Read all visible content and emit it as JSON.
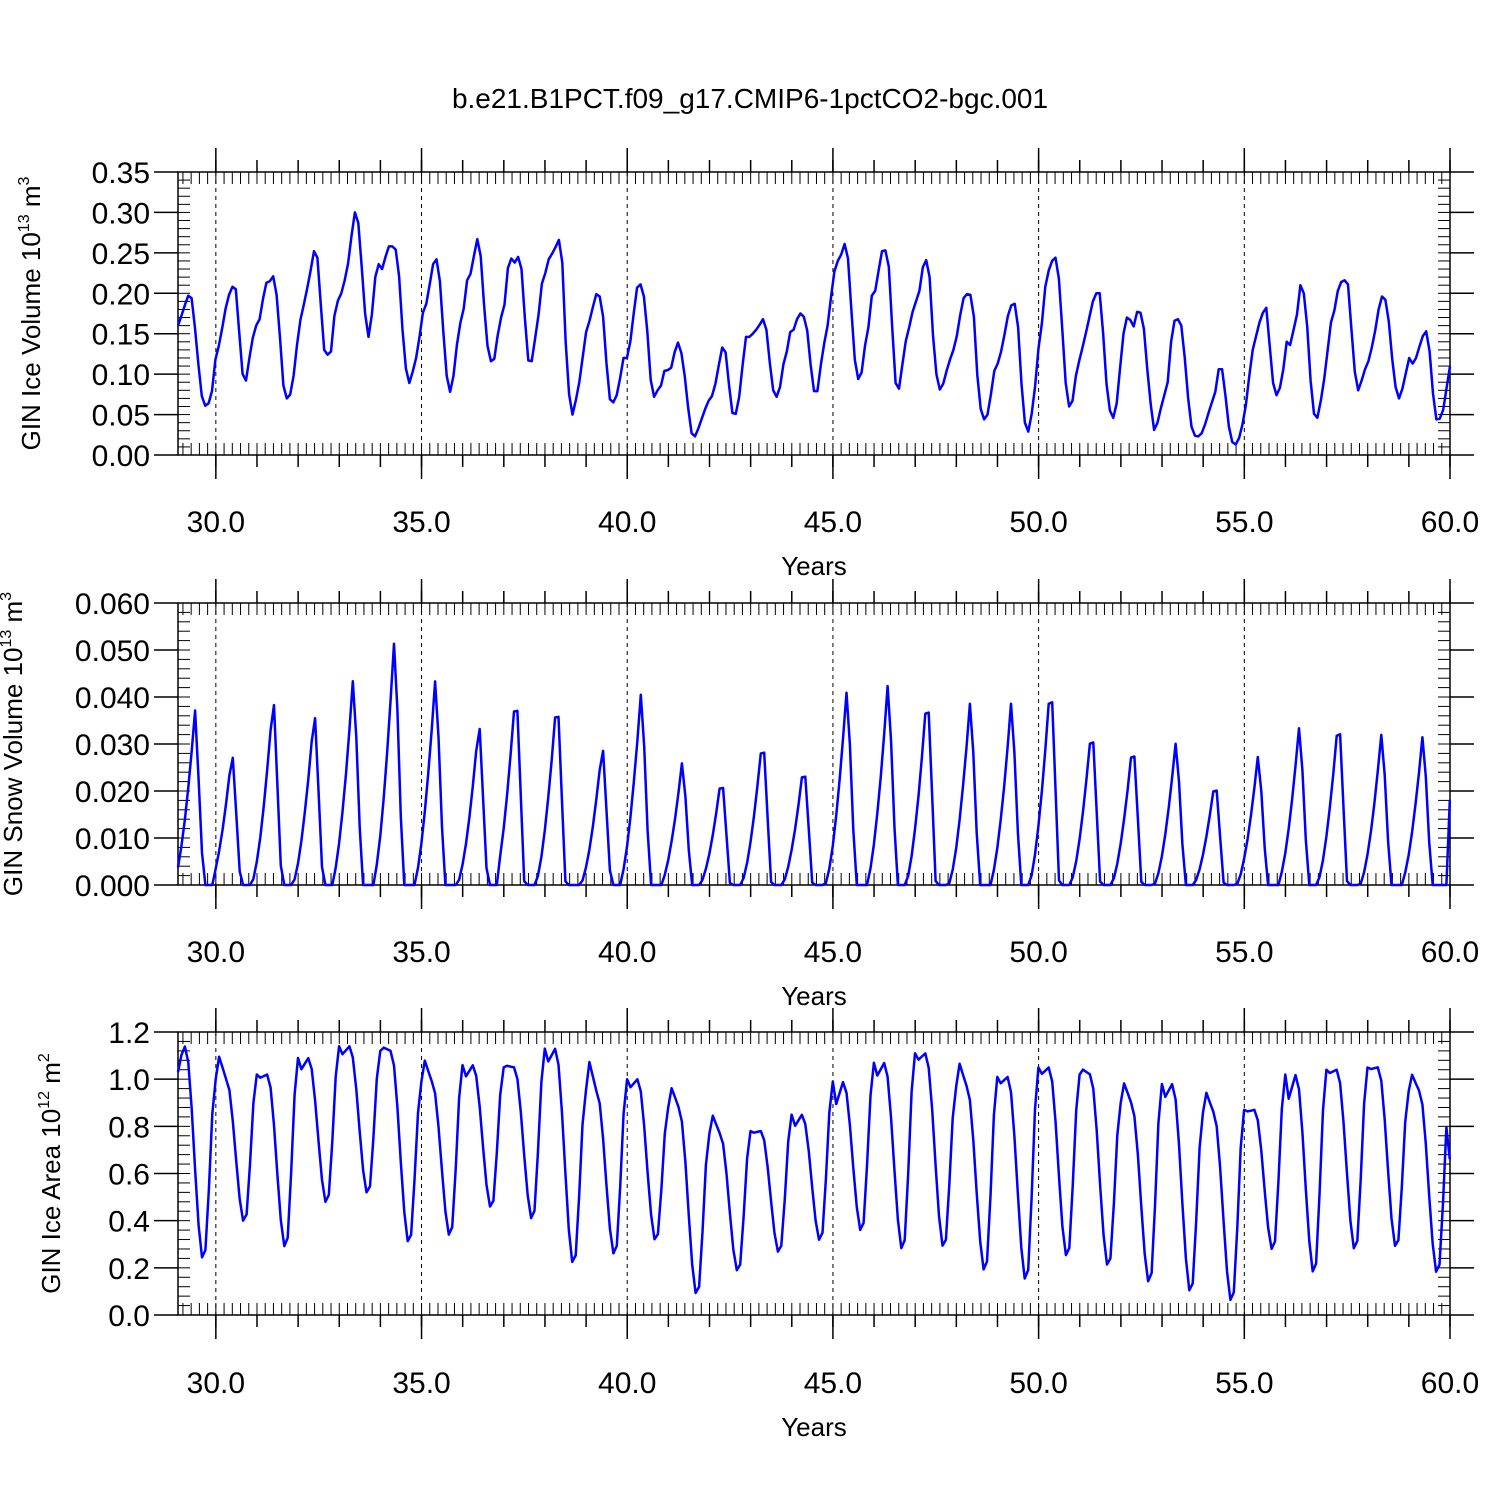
{
  "figure": {
    "title": "b.e21.B1PCT.f09_g17.CMIP6-1pctCO2-bgc.001"
  },
  "chart_data": [
    {
      "type": "line",
      "title": "b.e21.B1PCT.f09_g17.CMIP6-1pctCO2-bgc.001",
      "xlabel": "Years",
      "ylabel": {
        "base": "GIN Ice Volume 10",
        "sup": "13",
        "unit": " m",
        "unit_sup": "3"
      },
      "xlim": [
        29.08,
        60.0
      ],
      "ylim": [
        0.0,
        0.35
      ],
      "x_ticks": [
        30,
        35,
        40,
        45,
        50,
        55,
        60
      ],
      "x_tick_labels": [
        "30.0",
        "35.0",
        "40.0",
        "45.0",
        "50.0",
        "55.0",
        "60.0"
      ],
      "y_ticks": [
        0.0,
        0.05,
        0.1,
        0.15,
        0.2,
        0.25,
        0.3,
        0.35
      ],
      "y_tick_labels": [
        "0.00",
        "0.05",
        "0.10",
        "0.15",
        "0.20",
        "0.25",
        "0.30",
        "0.35"
      ],
      "grid": "dashed vertical at major x ticks",
      "line_color": "#0000ff",
      "x_start": 29.08,
      "x_step": 0.08333,
      "values": [
        0.16,
        0.172,
        0.185,
        0.197,
        0.194,
        0.157,
        0.112,
        0.073,
        0.061,
        0.064,
        0.079,
        0.118,
        0.135,
        0.157,
        0.181,
        0.198,
        0.208,
        0.205,
        0.152,
        0.1,
        0.092,
        0.12,
        0.145,
        0.16,
        0.168,
        0.193,
        0.213,
        0.215,
        0.221,
        0.198,
        0.145,
        0.086,
        0.07,
        0.075,
        0.098,
        0.136,
        0.167,
        0.186,
        0.206,
        0.228,
        0.252,
        0.244,
        0.186,
        0.13,
        0.124,
        0.128,
        0.172,
        0.191,
        0.2,
        0.216,
        0.237,
        0.271,
        0.3,
        0.287,
        0.233,
        0.175,
        0.146,
        0.174,
        0.22,
        0.236,
        0.23,
        0.245,
        0.258,
        0.258,
        0.254,
        0.221,
        0.155,
        0.107,
        0.089,
        0.103,
        0.12,
        0.146,
        0.176,
        0.187,
        0.211,
        0.236,
        0.242,
        0.215,
        0.153,
        0.098,
        0.078,
        0.098,
        0.136,
        0.163,
        0.181,
        0.216,
        0.224,
        0.246,
        0.267,
        0.246,
        0.185,
        0.135,
        0.116,
        0.119,
        0.148,
        0.17,
        0.186,
        0.231,
        0.243,
        0.238,
        0.245,
        0.23,
        0.169,
        0.117,
        0.116,
        0.144,
        0.173,
        0.212,
        0.225,
        0.242,
        0.249,
        0.257,
        0.266,
        0.238,
        0.139,
        0.075,
        0.05,
        0.068,
        0.09,
        0.121,
        0.152,
        0.166,
        0.183,
        0.199,
        0.196,
        0.171,
        0.113,
        0.069,
        0.065,
        0.074,
        0.095,
        0.12,
        0.12,
        0.14,
        0.175,
        0.207,
        0.211,
        0.196,
        0.153,
        0.093,
        0.072,
        0.08,
        0.086,
        0.104,
        0.105,
        0.108,
        0.127,
        0.139,
        0.126,
        0.097,
        0.058,
        0.027,
        0.023,
        0.033,
        0.045,
        0.057,
        0.067,
        0.073,
        0.088,
        0.111,
        0.133,
        0.127,
        0.087,
        0.052,
        0.051,
        0.072,
        0.111,
        0.146,
        0.146,
        0.15,
        0.155,
        0.161,
        0.168,
        0.155,
        0.114,
        0.08,
        0.072,
        0.084,
        0.112,
        0.128,
        0.152,
        0.155,
        0.168,
        0.175,
        0.171,
        0.154,
        0.112,
        0.079,
        0.079,
        0.111,
        0.138,
        0.16,
        0.195,
        0.227,
        0.24,
        0.248,
        0.261,
        0.243,
        0.179,
        0.118,
        0.094,
        0.102,
        0.135,
        0.158,
        0.197,
        0.203,
        0.228,
        0.252,
        0.253,
        0.233,
        0.158,
        0.089,
        0.082,
        0.112,
        0.141,
        0.158,
        0.177,
        0.19,
        0.203,
        0.232,
        0.241,
        0.22,
        0.148,
        0.1,
        0.081,
        0.088,
        0.104,
        0.118,
        0.13,
        0.147,
        0.173,
        0.194,
        0.199,
        0.198,
        0.171,
        0.099,
        0.057,
        0.044,
        0.05,
        0.075,
        0.104,
        0.113,
        0.128,
        0.149,
        0.172,
        0.185,
        0.187,
        0.158,
        0.088,
        0.04,
        0.029,
        0.051,
        0.085,
        0.132,
        0.163,
        0.208,
        0.228,
        0.24,
        0.244,
        0.218,
        0.155,
        0.089,
        0.06,
        0.067,
        0.098,
        0.117,
        0.134,
        0.152,
        0.171,
        0.19,
        0.2,
        0.2,
        0.151,
        0.088,
        0.055,
        0.046,
        0.064,
        0.108,
        0.15,
        0.17,
        0.167,
        0.159,
        0.177,
        0.176,
        0.156,
        0.106,
        0.063,
        0.031,
        0.04,
        0.058,
        0.074,
        0.09,
        0.14,
        0.166,
        0.168,
        0.16,
        0.121,
        0.071,
        0.035,
        0.024,
        0.023,
        0.027,
        0.038,
        0.052,
        0.065,
        0.078,
        0.106,
        0.106,
        0.073,
        0.035,
        0.016,
        0.013,
        0.021,
        0.038,
        0.062,
        0.098,
        0.13,
        0.147,
        0.164,
        0.176,
        0.182,
        0.135,
        0.089,
        0.074,
        0.083,
        0.106,
        0.14,
        0.136,
        0.155,
        0.174,
        0.21,
        0.2,
        0.159,
        0.092,
        0.051,
        0.046,
        0.067,
        0.094,
        0.129,
        0.164,
        0.179,
        0.203,
        0.214,
        0.216,
        0.211,
        0.156,
        0.103,
        0.08,
        0.092,
        0.106,
        0.116,
        0.133,
        0.154,
        0.18,
        0.196,
        0.192,
        0.165,
        0.119,
        0.084,
        0.07,
        0.082,
        0.101,
        0.12,
        0.113,
        0.12,
        0.134,
        0.147,
        0.153,
        0.128,
        0.076,
        0.044,
        0.045,
        0.056,
        0.083,
        0.11
      ]
    },
    {
      "type": "line",
      "xlabel": "Years",
      "ylabel": {
        "base": "GIN Snow Volume 10",
        "sup": "13",
        "unit": " m",
        "unit_sup": "3"
      },
      "xlim": [
        29.08,
        60.0
      ],
      "ylim": [
        0.0,
        0.06
      ],
      "x_ticks": [
        30,
        35,
        40,
        45,
        50,
        55,
        60
      ],
      "x_tick_labels": [
        "30.0",
        "35.0",
        "40.0",
        "45.0",
        "50.0",
        "55.0",
        "60.0"
      ],
      "y_ticks": [
        0.0,
        0.01,
        0.02,
        0.03,
        0.04,
        0.05,
        0.06
      ],
      "y_tick_labels": [
        "0.000",
        "0.010",
        "0.020",
        "0.030",
        "0.040",
        "0.050",
        "0.060"
      ],
      "grid": "dashed vertical at major x ticks",
      "line_color": "#0000ff",
      "x_start": 29.08,
      "x_step": 0.08333,
      "peaks": [
        [
          29.5,
          0.0375
        ],
        [
          30.4,
          0.029
        ],
        [
          31.4,
          0.041
        ],
        [
          32.4,
          0.038
        ],
        [
          33.35,
          0.046
        ],
        [
          34.35,
          0.0545
        ],
        [
          35.35,
          0.046
        ],
        [
          36.4,
          0.0355
        ],
        [
          37.3,
          0.0435
        ],
        [
          38.3,
          0.042
        ],
        [
          39.4,
          0.0305
        ],
        [
          40.35,
          0.043
        ],
        [
          41.35,
          0.0275
        ],
        [
          42.3,
          0.0242
        ],
        [
          43.3,
          0.033
        ],
        [
          44.3,
          0.027
        ],
        [
          45.35,
          0.0435
        ],
        [
          46.35,
          0.045
        ],
        [
          47.3,
          0.043
        ],
        [
          48.35,
          0.041
        ],
        [
          49.35,
          0.041
        ],
        [
          50.3,
          0.0455
        ],
        [
          51.3,
          0.0355
        ],
        [
          52.3,
          0.032
        ],
        [
          53.35,
          0.032
        ],
        [
          54.3,
          0.0235
        ],
        [
          55.35,
          0.029
        ],
        [
          56.35,
          0.0355
        ],
        [
          57.3,
          0.0375
        ],
        [
          58.35,
          0.034
        ],
        [
          59.35,
          0.0335
        ]
      ],
      "end_value": 0.018
    },
    {
      "type": "line",
      "xlabel": "Years",
      "ylabel": {
        "base": "GIN Ice Area 10",
        "sup": "12",
        "unit": " m",
        "unit_sup": "2"
      },
      "xlim": [
        29.08,
        60.0
      ],
      "ylim": [
        0.0,
        1.2
      ],
      "x_ticks": [
        30,
        35,
        40,
        45,
        50,
        55,
        60
      ],
      "x_tick_labels": [
        "30.0",
        "35.0",
        "40.0",
        "45.0",
        "50.0",
        "55.0",
        "60.0"
      ],
      "y_ticks": [
        0.0,
        0.2,
        0.4,
        0.6,
        0.8,
        1.0,
        1.2
      ],
      "y_tick_labels": [
        "0.0",
        "0.2",
        "0.4",
        "0.6",
        "0.8",
        "1.0",
        "1.2"
      ],
      "grid": "dashed vertical at major x ticks",
      "line_color": "#0000ff",
      "x_start": 29.08,
      "x_step": 0.08333,
      "troughs": [
        0.23,
        0.39,
        0.28,
        0.47,
        0.51,
        0.3,
        0.33,
        0.45,
        0.4,
        0.21,
        0.25,
        0.31,
        0.08,
        0.18,
        0.26,
        0.31,
        0.35,
        0.27,
        0.28,
        0.18,
        0.14,
        0.24,
        0.2,
        0.13,
        0.09,
        0.05,
        0.27,
        0.17,
        0.27,
        0.28,
        0.17
      ],
      "peaks": [
        1.14,
        1.0,
        1.02,
        1.09,
        1.14,
        1.12,
        0.99,
        1.06,
        1.05,
        1.13,
        0.95,
        1.0,
        0.88,
        0.77,
        0.78,
        0.85,
        0.99,
        1.07,
        1.11,
        0.97,
        1.01,
        1.05,
        1.02,
        0.9,
        0.98,
        0.86,
        0.87,
        1.02,
        1.04,
        1.05,
        0.95
      ],
      "start_value": 1.03,
      "end_value": 0.66
    }
  ]
}
